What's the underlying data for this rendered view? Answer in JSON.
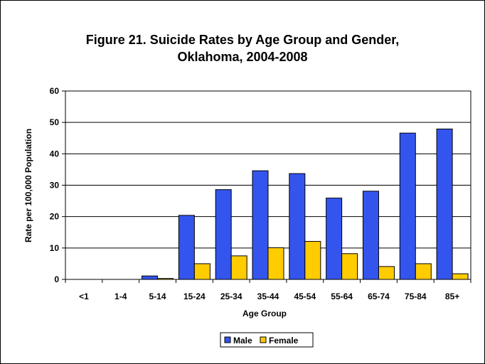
{
  "chart_data": {
    "type": "bar",
    "title_line1": "Figure 21. Suicide Rates by Age Group and Gender,",
    "title_line2": "Oklahoma, 2004-2008",
    "xlabel": "Age Group",
    "ylabel": "Rate per 100,000 Population",
    "ylim": [
      0,
      60
    ],
    "yticks": [
      0,
      10,
      20,
      30,
      40,
      50,
      60
    ],
    "grid": true,
    "legend_position": "bottom",
    "categories": [
      "<1",
      "1-4",
      "5-14",
      "15-24",
      "25-34",
      "35-44",
      "45-54",
      "55-64",
      "65-74",
      "75-84",
      "85+"
    ],
    "series": [
      {
        "name": "Male",
        "color": "#3355ee",
        "values": [
          0,
          0,
          1.1,
          20.4,
          28.6,
          34.6,
          33.7,
          25.9,
          28.1,
          46.6,
          47.9
        ]
      },
      {
        "name": "Female",
        "color": "#ffcc00",
        "values": [
          0,
          0,
          0.3,
          5.0,
          7.5,
          10.1,
          12.1,
          8.2,
          4.1,
          5.0,
          1.8
        ]
      }
    ]
  }
}
